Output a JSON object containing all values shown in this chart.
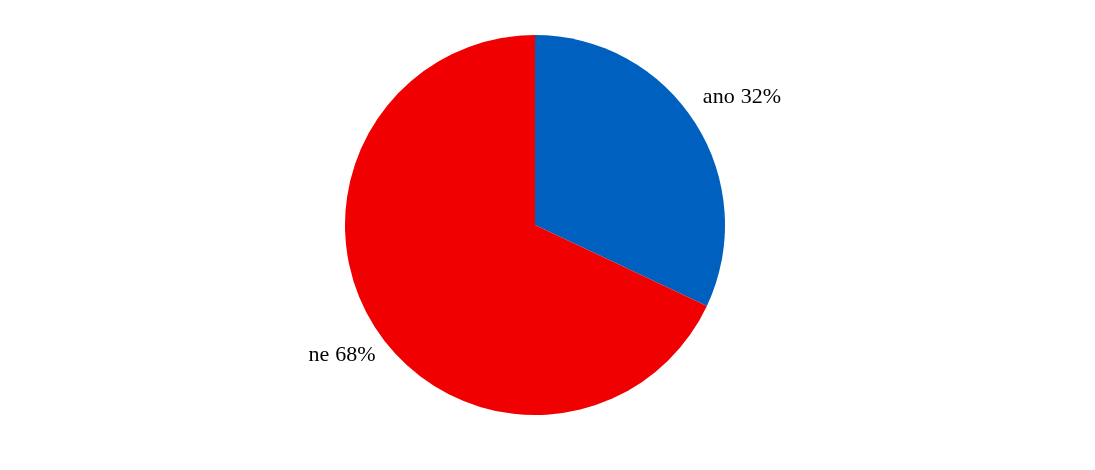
{
  "chart_data": {
    "type": "pie",
    "categories": [
      "ano",
      "ne"
    ],
    "values": [
      32,
      68
    ],
    "colors": [
      "#0060c0",
      "#f00000"
    ],
    "value_labels": [
      "32%",
      "68%"
    ],
    "legend": false
  }
}
